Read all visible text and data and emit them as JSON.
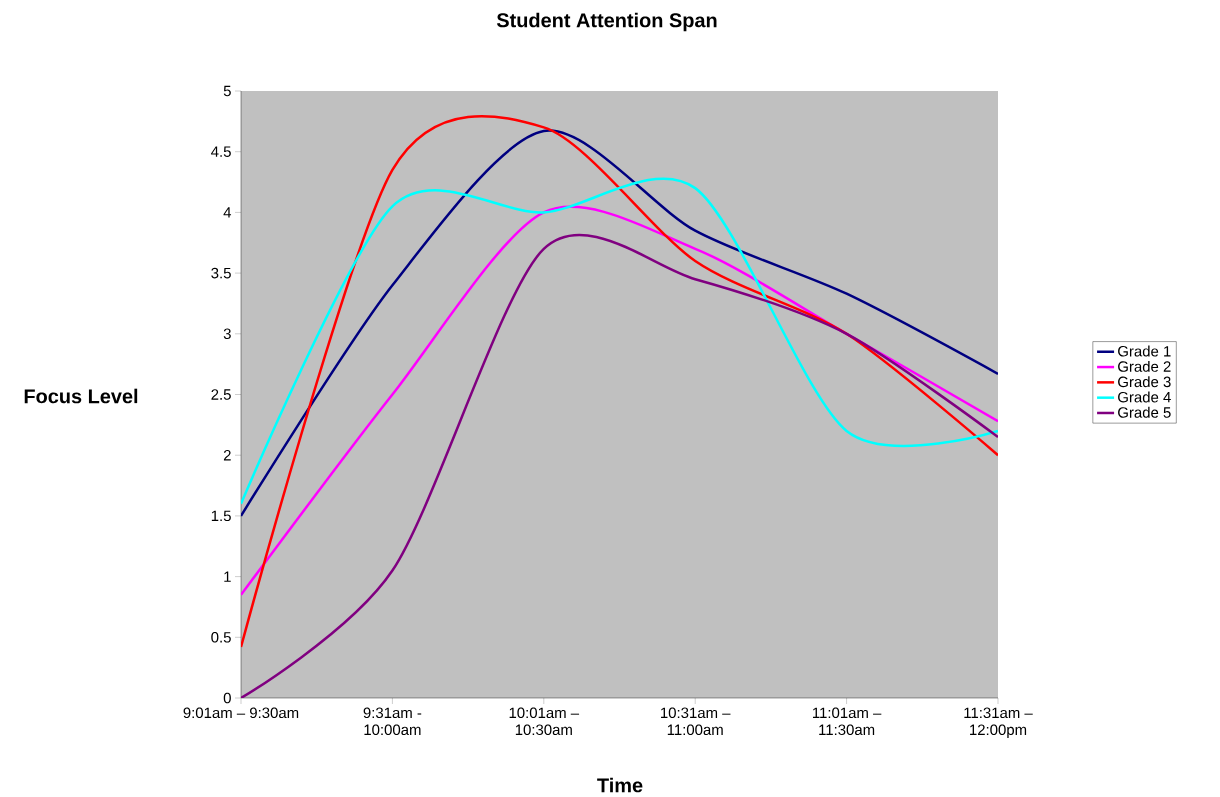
{
  "chart_data": {
    "type": "line",
    "title": "Student Attention Span",
    "xlabel": "Time",
    "ylabel": "Focus Level",
    "categories": [
      "9:01am – 9:30am",
      "9:31am - 10:00am",
      "10:01am – 10:30am",
      "10:31am – 11:00am",
      "11:01am – 11:30am",
      "11:31am – 12:00pm"
    ],
    "series": [
      {
        "name": "Grade 1",
        "color": "#000080",
        "values": [
          1.5,
          3.4,
          4.67,
          3.85,
          3.33,
          2.67
        ]
      },
      {
        "name": "Grade 2",
        "color": "#ff00ff",
        "values": [
          0.85,
          2.5,
          4.0,
          3.7,
          3.0,
          2.28
        ]
      },
      {
        "name": "Grade 3",
        "color": "#ff0000",
        "values": [
          0.42,
          4.35,
          4.7,
          3.6,
          3.0,
          2.0
        ]
      },
      {
        "name": "Grade 4",
        "color": "#00ffff",
        "values": [
          1.6,
          4.05,
          4.0,
          4.2,
          2.2,
          2.2
        ]
      },
      {
        "name": "Grade 5",
        "color": "#800080",
        "values": [
          0,
          1.05,
          3.7,
          3.45,
          3.0,
          2.15
        ]
      }
    ],
    "ylim": [
      0,
      5
    ],
    "yticks": [
      0,
      0.5,
      1,
      1.5,
      2,
      2.5,
      3,
      3.5,
      4,
      4.5,
      5
    ],
    "grid": false,
    "legend": "right",
    "marker": "none",
    "line_style": "solid"
  }
}
